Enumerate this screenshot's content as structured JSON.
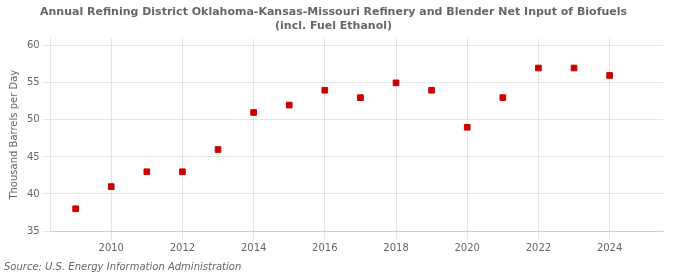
{
  "chart_data": {
    "type": "scatter",
    "title": "Annual Refining District Oklahoma-Kansas-Missouri Refinery and Blender Net Input of Biofuels\n(incl. Fuel Ethanol)",
    "ylabel": "Thousand Barrels per Day",
    "annotation": "Source: U.S. Energy Information Administration",
    "x": [
      2009,
      2010,
      2011,
      2012,
      2013,
      2014,
      2015,
      2016,
      2017,
      2018,
      2019,
      2020,
      2021,
      2022,
      2023,
      2024
    ],
    "values": [
      38.0,
      41.0,
      43.0,
      43.0,
      46.0,
      51.0,
      52.0,
      54.0,
      53.0,
      55.0,
      54.0,
      49.0,
      53.0,
      57.0,
      57.0,
      56.0
    ],
    "color": "#cc0000",
    "marker": "square",
    "xlim": [
      2008.3,
      2025.5
    ],
    "ylim": [
      35,
      61
    ],
    "xticks": [
      2010,
      2012,
      2014,
      2016,
      2018,
      2020,
      2022,
      2024
    ],
    "yticks": [
      35,
      40,
      45,
      50,
      55,
      60
    ],
    "grid": true
  }
}
